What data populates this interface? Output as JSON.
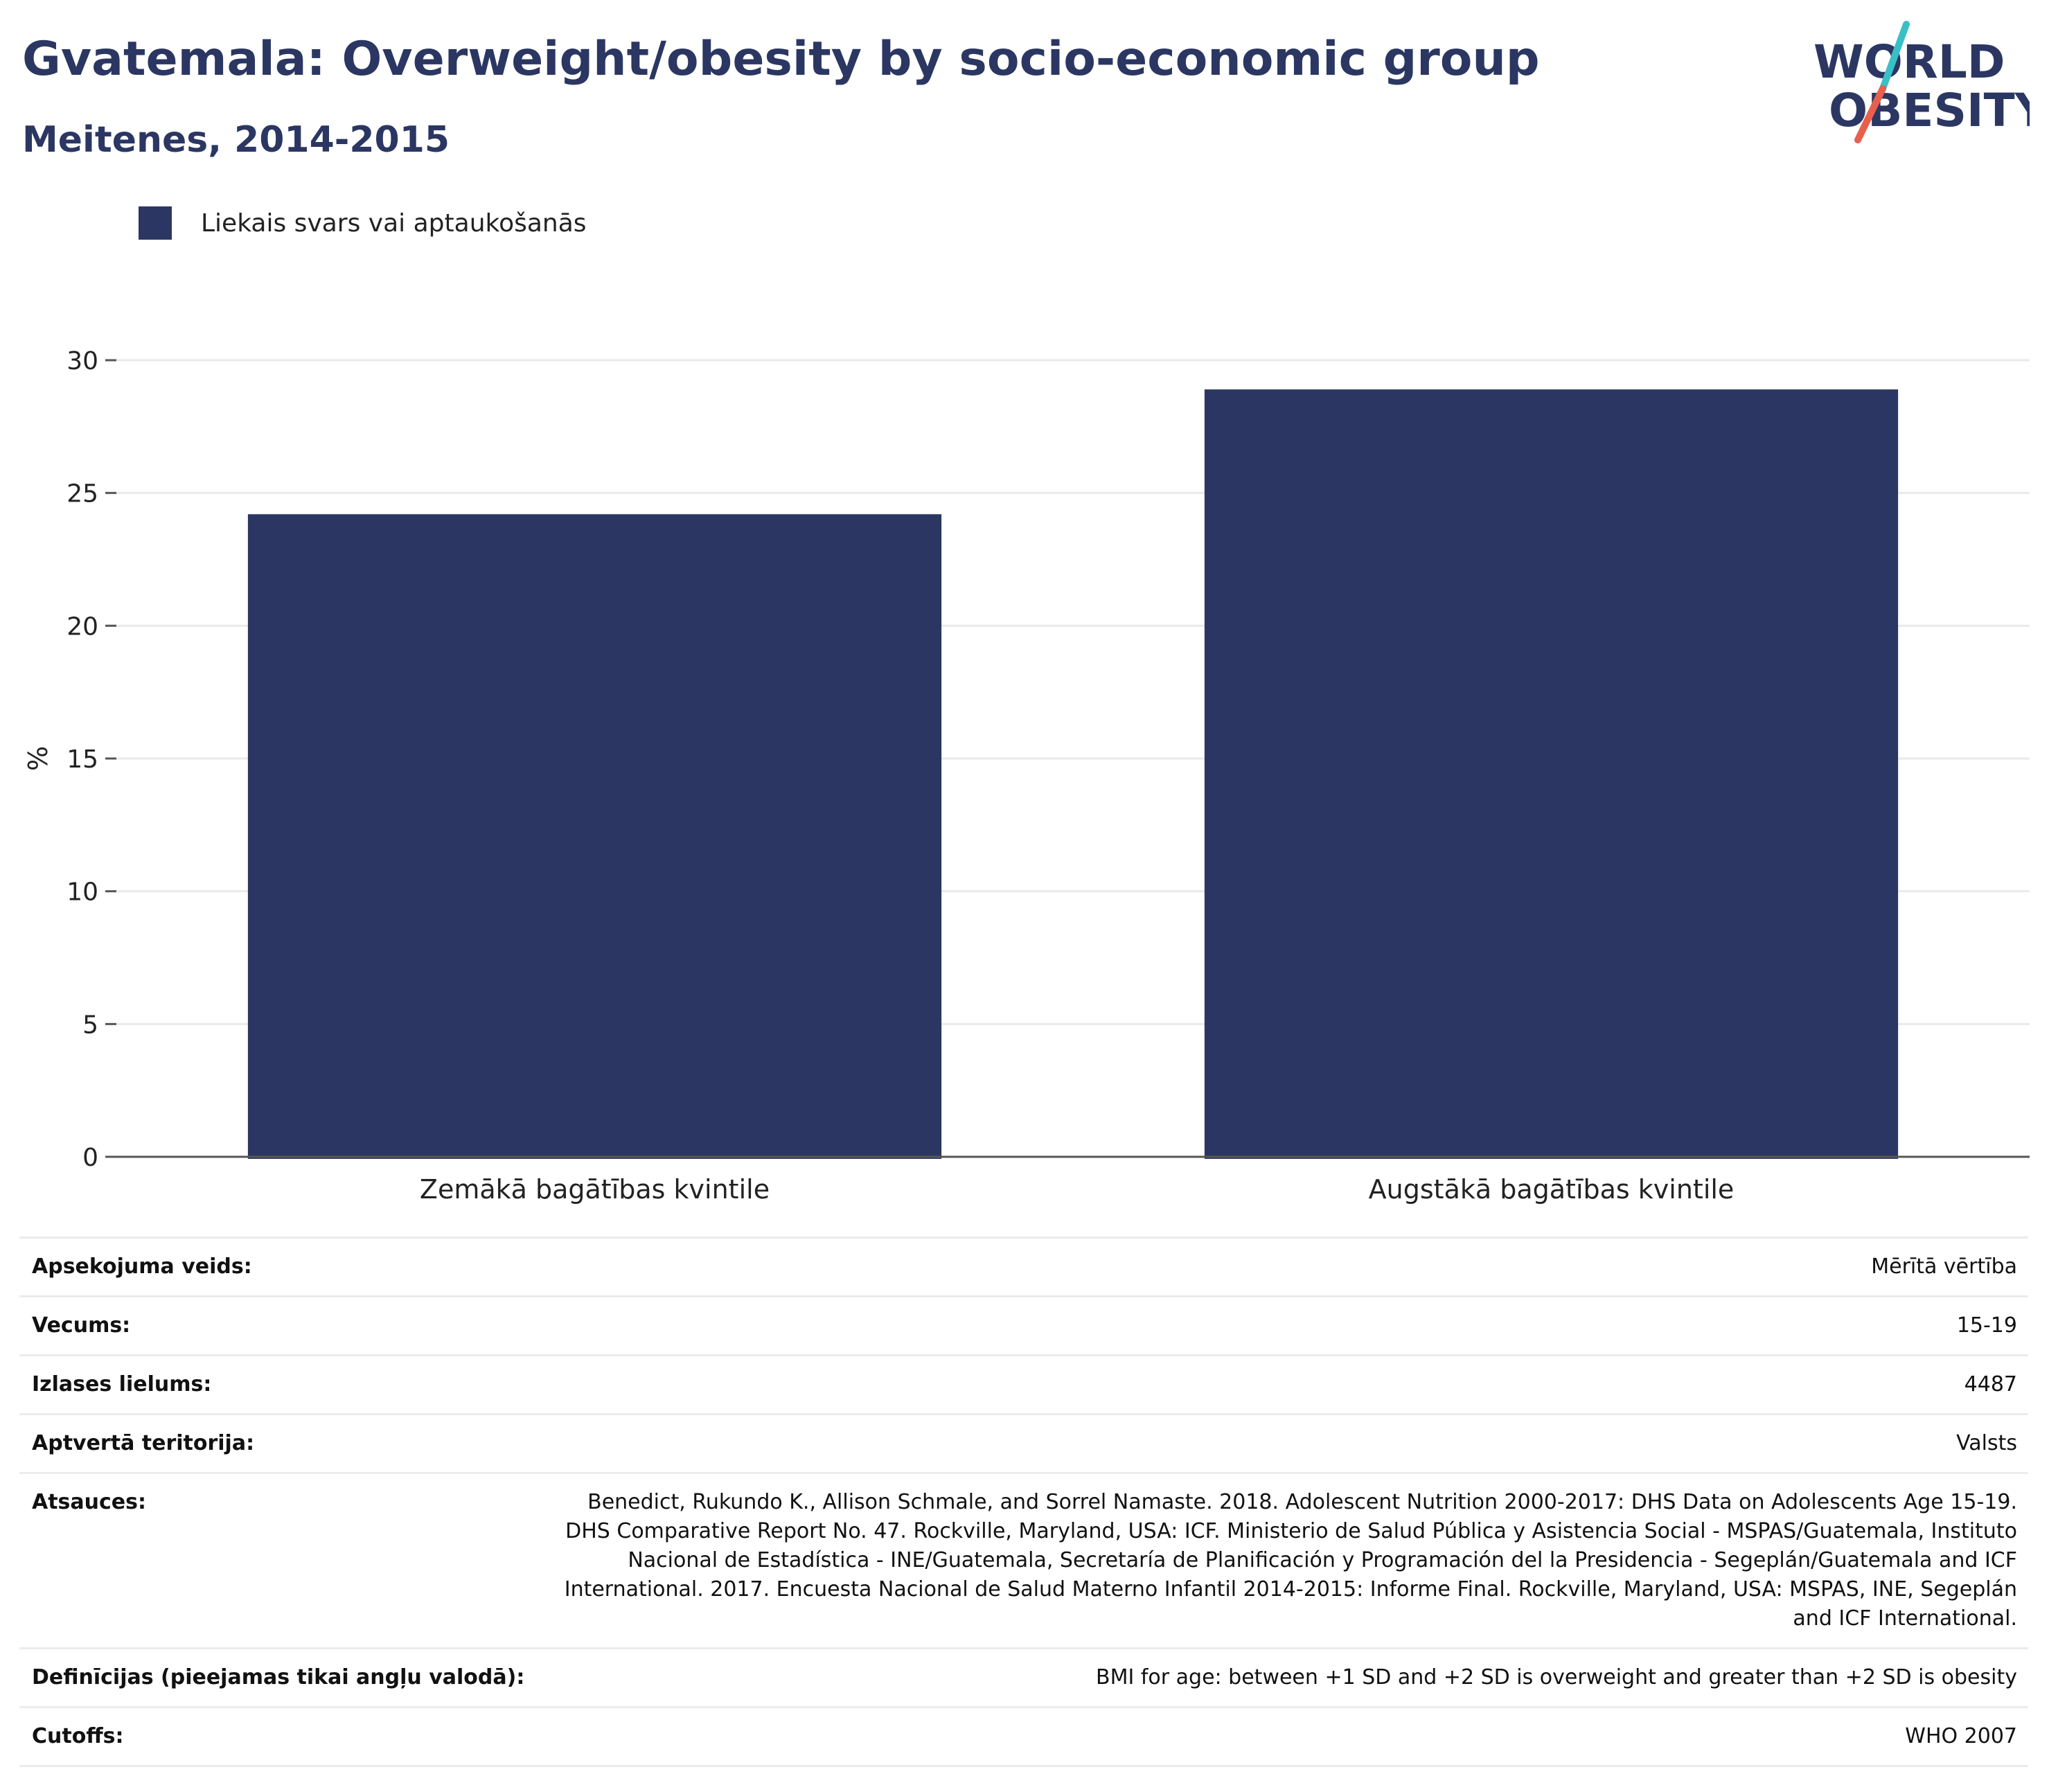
{
  "header": {
    "title": "Gvatemala: Overweight/obesity by socio-economic group",
    "subtitle": "Meitenes, 2014-2015"
  },
  "logo": {
    "line1": "WORLD",
    "line2": "OBESITY",
    "colors": {
      "text": "#2b3762",
      "slash_top": "#3bbfc7",
      "slash_bottom": "#e8604c"
    }
  },
  "chart_data": {
    "type": "bar",
    "categories": [
      "Zemākā bagātības kvintile",
      "Augstākā bagātības kvintile"
    ],
    "series": [
      {
        "name": "Liekais svars vai aptaukošanās",
        "values": [
          24.2,
          28.9
        ],
        "color": "#2b3762"
      }
    ],
    "xlabel": "",
    "ylabel": "%",
    "ylim": [
      0,
      30
    ],
    "yticks": [
      0,
      5,
      10,
      15,
      20,
      25,
      30
    ],
    "grid": true,
    "legend_position": "top-left"
  },
  "info": [
    {
      "label": "Apsekojuma veids:",
      "value": "Mērītā vērtība"
    },
    {
      "label": "Vecums:",
      "value": "15-19"
    },
    {
      "label": "Izlases lielums:",
      "value": "4487"
    },
    {
      "label": "Aptvertā teritorija:",
      "value": "Valsts"
    },
    {
      "label": "Atsauces:",
      "value": "Benedict, Rukundo K., Allison Schmale, and Sorrel Namaste. 2018. Adolescent Nutrition 2000-2017: DHS Data on Adolescents Age 15-19. DHS Comparative Report No. 47. Rockville, Maryland, USA: ICF. Ministerio de Salud Pública y Asistencia Social - MSPAS/Guatemala, Instituto Nacional de Estadística - INE/Guatemala, Secretaría de Planificación y Programación del la Presidencia - Segeplán/Guatemala and ICF International. 2017. Encuesta Nacional de Salud Materno Infantil 2014-2015: Informe Final. Rockville, Maryland, USA: MSPAS, INE, Segeplán and ICF International."
    },
    {
      "label": "Definīcijas (pieejamas tikai angļu valodā):",
      "value": "BMI for age: between +1 SD and +2 SD is overweight and greater than +2 SD is obesity"
    },
    {
      "label": "Cutoffs:",
      "value": "WHO 2007"
    }
  ]
}
